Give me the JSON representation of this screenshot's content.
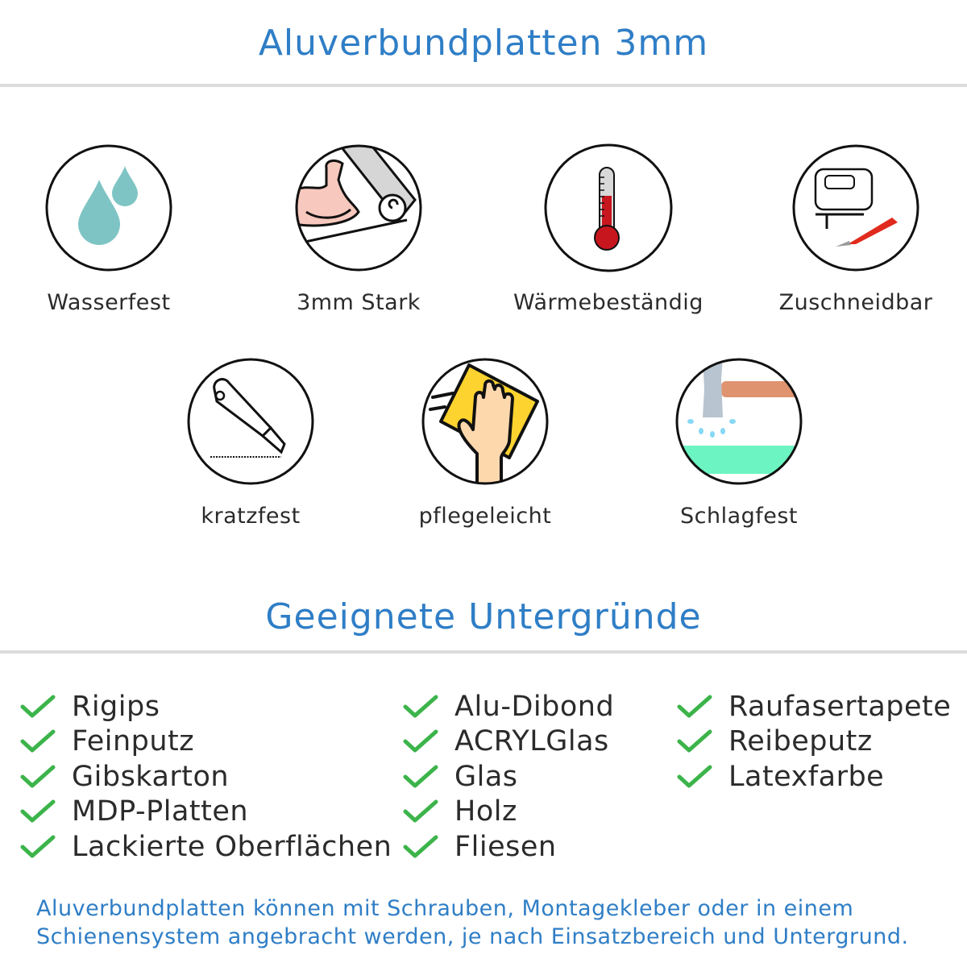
{
  "header": {
    "title": "Aluverbundplatten 3mm"
  },
  "features": [
    {
      "label": "Wasserfest",
      "icon": "water-drops-icon"
    },
    {
      "label": "3mm Stark",
      "icon": "strong-arm-icon"
    },
    {
      "label": "Wärmebeständig",
      "icon": "thermometer-icon"
    },
    {
      "label": "Zuschneidbar",
      "icon": "jigsaw-cutter-icon"
    },
    {
      "label": "kratzfest",
      "icon": "cutter-knife-icon"
    },
    {
      "label": "pflegeleicht",
      "icon": "hand-cloth-icon"
    },
    {
      "label": "Schlagfest",
      "icon": "hammer-icon"
    }
  ],
  "surfaces": {
    "title": "Geeignete Untergründe",
    "columns": [
      [
        "Rigips",
        "Feinputz",
        "Gibskarton",
        "MDP-Platten",
        "Lackierte Oberflächen"
      ],
      [
        "Alu-Dibond",
        "ACRYLGlas",
        "Glas",
        "Holz",
        "Fliesen"
      ],
      [
        "Raufasertapete",
        "Reibeputz",
        "Latexfarbe"
      ]
    ],
    "check_color": "#3cb44a"
  },
  "footer": {
    "line1": "Aluverbundplatten können mit Schrauben, Montagekleber oder in einem",
    "line2": "Schienensystem angebracht werden, je nach Einsatzbereich und Untergrund."
  },
  "colors": {
    "accent": "#2f7ec6",
    "divider": "#dcdcdc"
  }
}
